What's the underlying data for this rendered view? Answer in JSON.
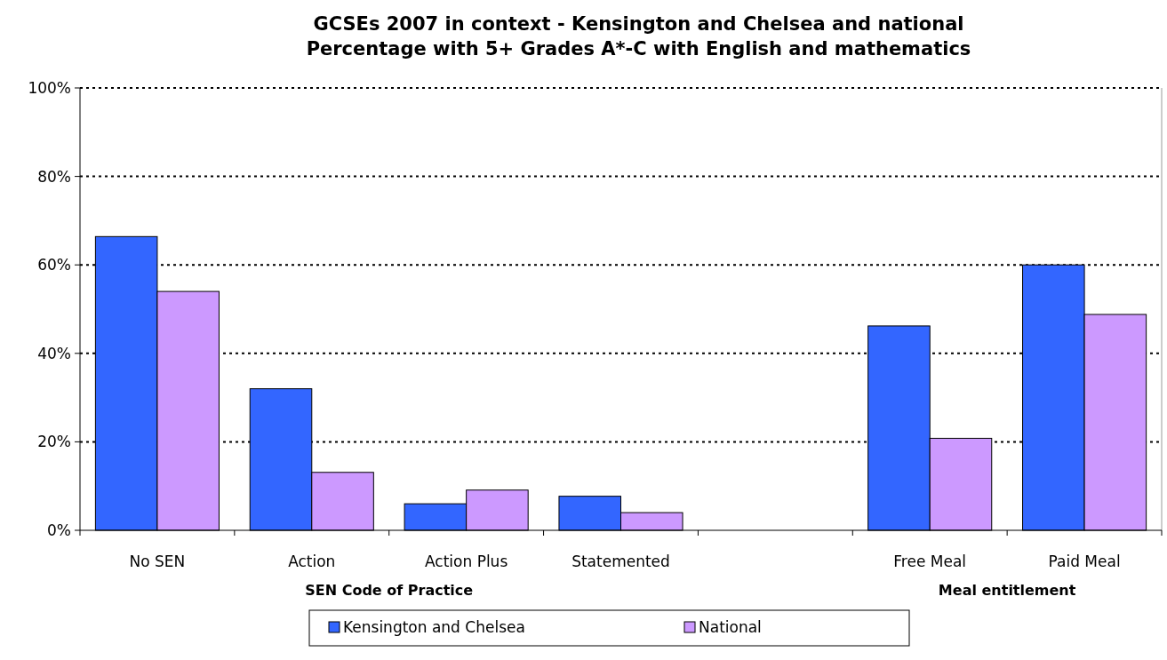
{
  "chart_data": {
    "type": "bar",
    "title": "GCSEs 2007 in context - Kensington and Chelsea and national\nPercentage with 5+ Grades A*-C with English and mathematics",
    "categories": [
      "No SEN",
      "Action",
      "Action Plus",
      "Statemented",
      null,
      "Free Meal",
      "Paid Meal"
    ],
    "series": [
      {
        "name": "Kensington and Chelsea",
        "color": "#3366ff",
        "values": [
          66.4,
          32.0,
          6.0,
          7.7,
          null,
          46.2,
          60.0
        ]
      },
      {
        "name": "National",
        "color": "#cc99ff",
        "values": [
          54.0,
          13.1,
          9.1,
          4.0,
          null,
          20.8,
          48.8
        ]
      }
    ],
    "annotations": [
      "SEN Code of Practice",
      "Meal entitlement"
    ],
    "ylim": [
      0,
      100
    ],
    "yticks": [
      {
        "value": 0,
        "label": "0%"
      },
      {
        "value": 20,
        "label": "20%"
      },
      {
        "value": 40,
        "label": "40%"
      },
      {
        "value": 60,
        "label": "60%"
      },
      {
        "value": 80,
        "label": "80%"
      },
      {
        "value": 100,
        "label": "100%"
      }
    ],
    "grid": "y",
    "legend": "bottom"
  }
}
